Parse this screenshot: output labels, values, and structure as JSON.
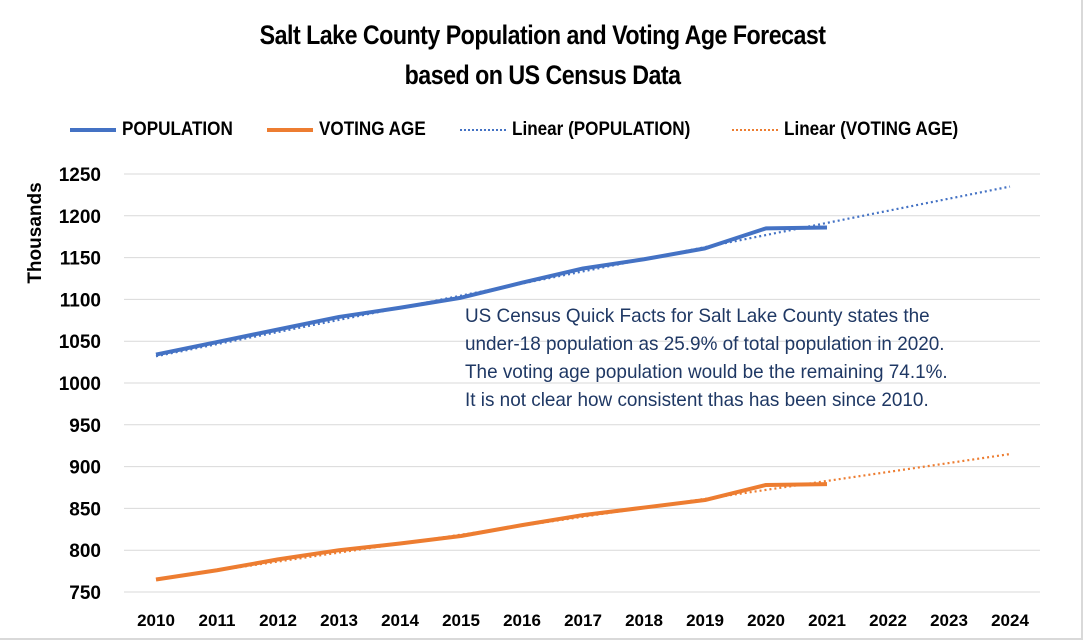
{
  "chart_data": {
    "type": "line",
    "title": "Salt Lake County Population and Voting Age Forecast",
    "subtitle": "based on US Census Data",
    "xlabel": "",
    "ylabel": "Thousands",
    "categories": [
      "2010",
      "2011",
      "2012",
      "2013",
      "2014",
      "2015",
      "2016",
      "2017",
      "2018",
      "2019",
      "2020",
      "2021",
      "2022",
      "2023",
      "2024"
    ],
    "yticks": [
      "1250",
      "1200",
      "1150",
      "1100",
      "1050",
      "1000",
      "950",
      "900",
      "850",
      "800",
      "750"
    ],
    "ylim": [
      750,
      1250
    ],
    "grid": true,
    "legend_position": "top",
    "series": [
      {
        "name": "POPULATION",
        "style": "solid",
        "color": "#4472C4",
        "values": [
          1034,
          1049,
          1064,
          1079,
          1090,
          1102,
          1120,
          1137,
          1148,
          1161,
          1185,
          1186,
          null,
          null,
          null
        ]
      },
      {
        "name": "VOTING AGE",
        "style": "solid",
        "color": "#ED7D31",
        "values": [
          765,
          776,
          789,
          800,
          808,
          817,
          830,
          842,
          851,
          860,
          878,
          879,
          null,
          null,
          null
        ]
      },
      {
        "name": "Linear (POPULATION)",
        "style": "dotted",
        "color": "#4472C4",
        "trend": {
          "start_year": "2010",
          "start_value": 1032,
          "end_year": "2024",
          "end_value": 1235
        }
      },
      {
        "name": "Linear (VOTING AGE)",
        "style": "dotted",
        "color": "#ED7D31",
        "trend": {
          "start_year": "2010",
          "start_value": 765,
          "end_year": "2024",
          "end_value": 915
        }
      }
    ],
    "annotation": [
      "US Census Quick Facts for Salt Lake County states the",
      "under-18 population as 25.9% of total population in 2020.",
      "The voting age population would be the remaining 74.1%.",
      "It is not clear how consistent thas has been since 2010."
    ]
  },
  "legend": {
    "items": [
      {
        "label": "POPULATION"
      },
      {
        "label": "VOTING AGE"
      },
      {
        "label": "Linear (POPULATION)"
      },
      {
        "label": "Linear (VOTING AGE)"
      }
    ]
  }
}
